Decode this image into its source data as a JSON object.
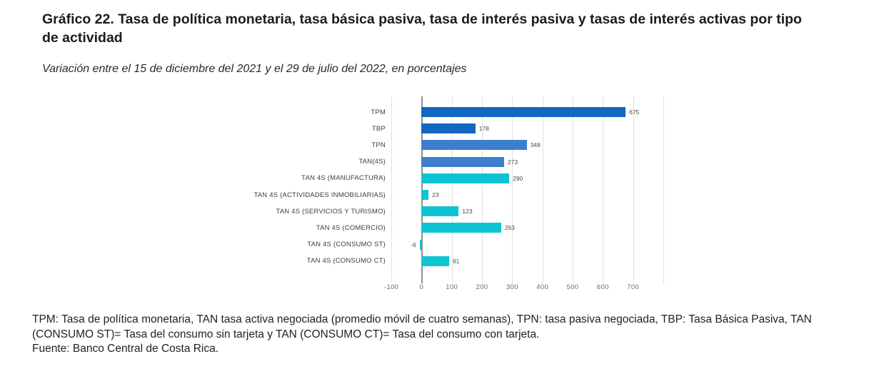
{
  "header": {
    "title": "Gráfico 22. Tasa de política monetaria, tasa básica pasiva, tasa de interés pasiva y tasas de interés activas por tipo de actividad",
    "subtitle": "Variación entre el 15 de diciembre del 2021 y el 29 de julio del 2022, en porcentajes"
  },
  "chart_data": {
    "type": "bar",
    "orientation": "horizontal",
    "title": "Gráfico 22. Tasa de política monetaria, tasa básica pasiva, tasa de interés pasiva y tasas de interés activas por tipo de actividad",
    "subtitle": "Variación entre el 15 de diciembre del 2021 y el 29 de julio del 2022, en porcentajes",
    "categories": [
      "TPM",
      "TBP",
      "TPN",
      "TAN(4S)",
      "TAN 4S (MANUFACTURA)",
      "TAN 4S (ACTIVIDADES INMOBILIARIAS)",
      "TAN 4S (SERVICIOS Y TURISMO)",
      "TAN 4S (COMERCIO)",
      "TAN 4S (CONSUMO ST)",
      "TAN 4S (CONSUMO CT)"
    ],
    "values": [
      675,
      178,
      348,
      273,
      290,
      23,
      123,
      263,
      -6,
      91
    ],
    "bar_colors": [
      "#1267c1",
      "#1267c1",
      "#3e7ecd",
      "#3e7ecd",
      "#0fc4d2",
      "#0fc4d2",
      "#0fc4d2",
      "#0fc4d2",
      "#0fc4d2",
      "#0fc4d2"
    ],
    "xlim": [
      -100,
      800
    ],
    "x_ticks": [
      -100,
      0,
      100,
      200,
      300,
      400,
      500,
      600,
      700
    ],
    "grid": true,
    "value_labels": true,
    "legend": false,
    "xlabel": "",
    "ylabel": ""
  },
  "colors": {
    "blue_dark": "#1267c1",
    "blue_medium": "#3e7ecd",
    "cyan": "#0fc4d2",
    "gridline": "#e1e1e1",
    "zero_line": "#8f8f8f"
  },
  "footer": {
    "note": "TPM: Tasa de política monetaria, TAN  tasa activa negociada (promedio móvil de cuatro semanas), TPN: tasa pasiva negociada, TBP: Tasa Básica Pasiva, TAN (CONSUMO ST)= Tasa del consumo sin tarjeta y TAN (CONSUMO CT)= Tasa del consumo con tarjeta.",
    "source": "Fuente: Banco Central de Costa Rica."
  }
}
